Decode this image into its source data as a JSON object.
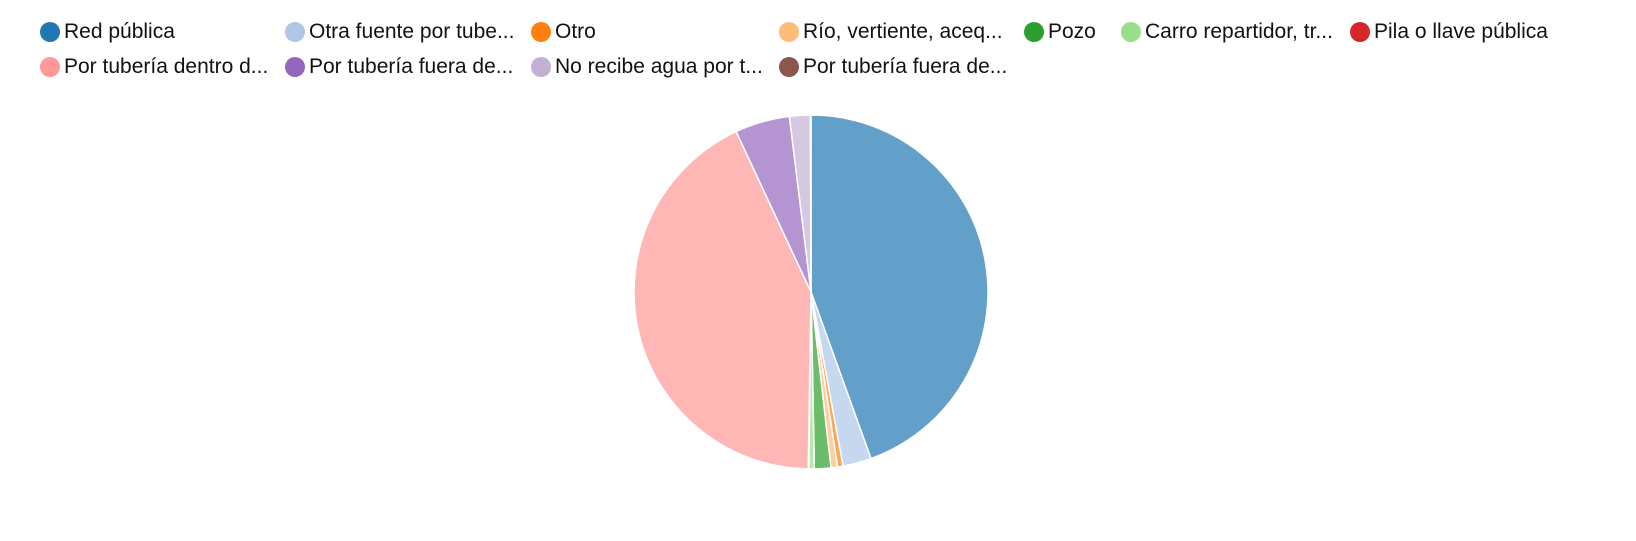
{
  "chart_data": {
    "type": "pie",
    "legend_position": "top",
    "slices": [
      {
        "label": "Red pública",
        "value": 44.5,
        "color": "#1f77b4"
      },
      {
        "label": "Otra fuente por tube...",
        "value": 2.6,
        "color": "#aec7e8"
      },
      {
        "label": "Otro",
        "value": 0.5,
        "color": "#ff7f0e"
      },
      {
        "label": "Río, vertiente, aceq...",
        "value": 0.6,
        "color": "#ffbb78"
      },
      {
        "label": "Pozo",
        "value": 1.5,
        "color": "#2ca02c"
      },
      {
        "label": "Carro repartidor, tr...",
        "value": 0.5,
        "color": "#98df8a"
      },
      {
        "label": "Pila o llave pública",
        "value": 0.05,
        "color": "#d62728"
      },
      {
        "label": "Por tubería dentro d...",
        "value": 42.8,
        "color": "#ff9896"
      },
      {
        "label": "Por tubería fuera de...",
        "value": 5.0,
        "color": "#9467bd"
      },
      {
        "label": "No recibe agua por t...",
        "value": 1.9,
        "color": "#c5b0d5"
      },
      {
        "label": "Por tubería fuera de...",
        "value": 0.05,
        "color": "#8c564b"
      }
    ]
  }
}
